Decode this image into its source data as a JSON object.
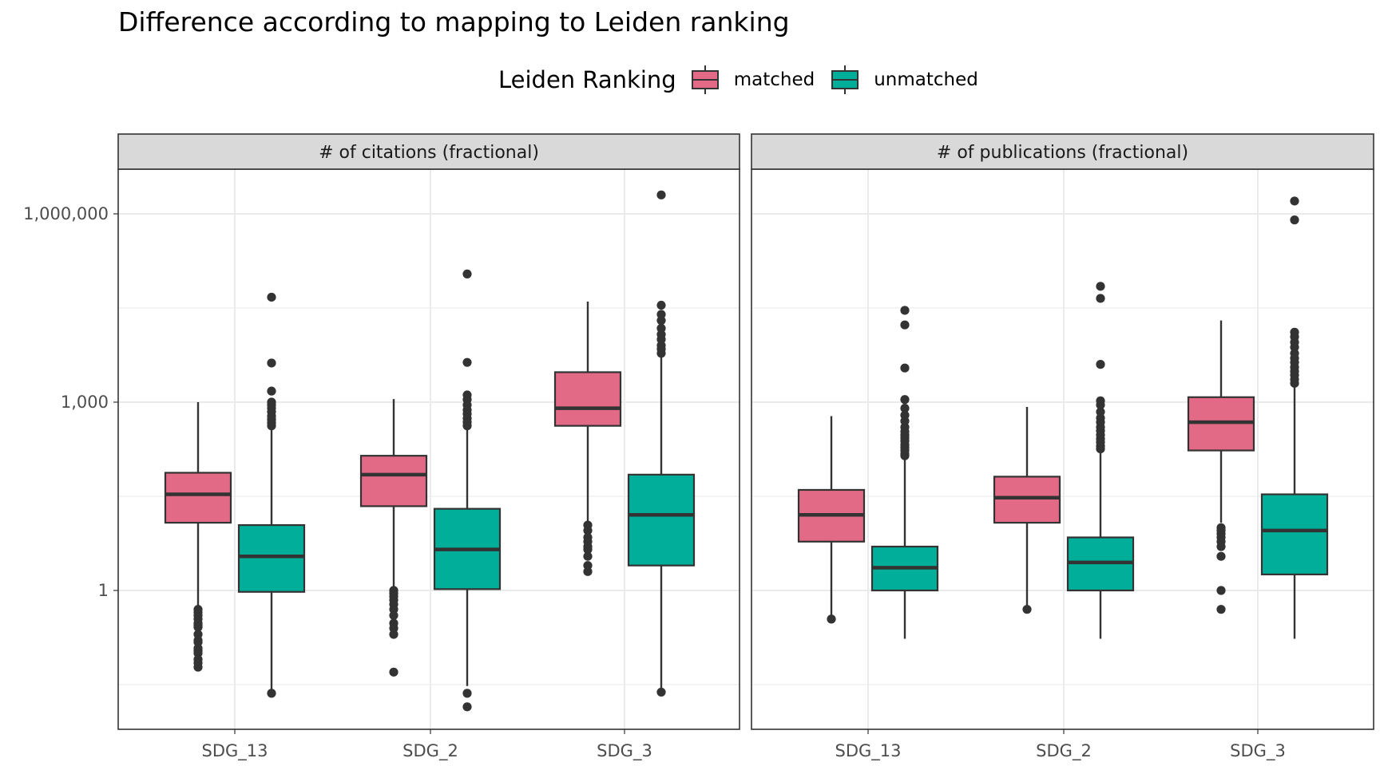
{
  "title": "Difference according to mapping to Leiden ranking",
  "legend": {
    "title": "Leiden Ranking",
    "items": [
      {
        "label": "matched",
        "color": "#E36A86"
      },
      {
        "label": "unmatched",
        "color": "#00AE9A"
      }
    ]
  },
  "chart_data": {
    "type": "boxplot",
    "title": "Difference according to mapping to Leiden ranking",
    "y_scale": "log10",
    "ylim": [
      0.01,
      30000000
    ],
    "y_ticks": [
      {
        "value": 1,
        "label": "1"
      },
      {
        "value": 1000,
        "label": "1,000"
      },
      {
        "value": 1000000,
        "label": "1,000,000"
      }
    ],
    "y_minor_gridlines": [
      0.03162,
      31.62,
      31623
    ],
    "grid": true,
    "legend_position": "top",
    "categories": [
      "SDG_13",
      "SDG_2",
      "SDG_3"
    ],
    "panels": [
      {
        "facet_label": "# of citations (fractional)",
        "groups": [
          {
            "category": "SDG_13",
            "series": "matched",
            "whisker_low": 0.24,
            "q1": 12,
            "median": 34,
            "q3": 75,
            "whisker_high": 1000,
            "outliers": [
              0.2,
              0.16,
              0.15,
              0.12,
              0.11,
              0.1,
              0.08,
              0.07,
              0.06,
              0.5,
              0.45,
              0.4,
              0.35,
              0.3,
              0.28,
              0.26
            ]
          },
          {
            "category": "SDG_13",
            "series": "matched_note",
            "skip": true
          },
          {
            "category": "SDG_13",
            "series": "unmatched",
            "whisker_low": 0.025,
            "q1": 0.95,
            "median": 3.5,
            "q3": 11,
            "whisker_high": 380,
            "outliers": [
              0.023,
              420,
              470,
              530,
              600,
              700,
              800,
              900,
              1000,
              1500,
              4200,
              47000
            ]
          },
          {
            "category": "SDG_2",
            "series": "matched",
            "whisker_low": 1.1,
            "q1": 22,
            "median": 70,
            "q3": 140,
            "whisker_high": 1120,
            "outliers": [
              1.0,
              0.9,
              0.8,
              0.7,
              0.6,
              0.5,
              0.4,
              0.3,
              0.25,
              0.2,
              0.05
            ]
          },
          {
            "category": "SDG_2",
            "series": "unmatched",
            "whisker_low": 0.03,
            "q1": 1.05,
            "median": 4.5,
            "q3": 20,
            "whisker_high": 380,
            "outliers": [
              0.023,
              0.014,
              420,
              480,
              550,
              650,
              750,
              900,
              1100,
              1300,
              4300,
              110000
            ]
          },
          {
            "category": "SDG_3",
            "series": "matched",
            "whisker_low": 12,
            "q1": 420,
            "median": 800,
            "q3": 3000,
            "whisker_high": 40000,
            "outliers": [
              11,
              9,
              7,
              6,
              5,
              4.5,
              3.5,
              2.5,
              2
            ]
          },
          {
            "category": "SDG_3",
            "series": "unmatched",
            "whisker_low": 0.025,
            "q1": 2.5,
            "median": 16,
            "q3": 70,
            "whisker_high": 5500,
            "outliers": [
              0.024,
              6000,
              7000,
              8000,
              10000,
              12000,
              15000,
              20000,
              25000,
              35000,
              2000000
            ]
          }
        ]
      },
      {
        "facet_label": "# of publications (fractional)",
        "groups": [
          {
            "category": "SDG_13",
            "series": "matched",
            "whisker_low": 0.4,
            "q1": 6,
            "median": 16,
            "q3": 40,
            "whisker_high": 600,
            "outliers": [
              0.35
            ]
          },
          {
            "category": "SDG_13",
            "series": "unmatched",
            "whisker_low": 0.17,
            "q1": 1,
            "median": 2.3,
            "q3": 5,
            "whisker_high": 130,
            "outliers": [
              140,
              150,
              170,
              190,
              210,
              240,
              270,
              300,
              340,
              400,
              500,
              620,
              800,
              1100,
              3500,
              17000,
              29000
            ]
          },
          {
            "category": "SDG_2",
            "series": "matched",
            "whisker_low": 0.5,
            "q1": 12,
            "median": 30,
            "q3": 65,
            "whisker_high": 840,
            "outliers": [
              0.5
            ]
          },
          {
            "category": "SDG_2",
            "series": "unmatched",
            "whisker_low": 0.17,
            "q1": 1,
            "median": 2.8,
            "q3": 7,
            "whisker_high": 160,
            "outliers": [
              180,
              200,
              230,
              260,
              300,
              350,
              400,
              480,
              560,
              700,
              900,
              1050,
              4000,
              45000,
              70000
            ]
          },
          {
            "category": "SDG_3",
            "series": "matched",
            "whisker_low": 12,
            "q1": 170,
            "median": 480,
            "q3": 1200,
            "whisker_high": 20000,
            "outliers": [
              10,
              9,
              8,
              7,
              6,
              5,
              3.5,
              1,
              0.5
            ]
          },
          {
            "category": "SDG_3",
            "series": "unmatched",
            "whisker_low": 0.17,
            "q1": 1.8,
            "median": 9,
            "q3": 34,
            "whisker_high": 1900,
            "outliers": [
              2000,
              2300,
              2700,
              3100,
              3600,
              4300,
              5000,
              6000,
              7500,
              9000,
              11000,
              13000,
              800000,
              1600000
            ]
          }
        ]
      }
    ]
  }
}
